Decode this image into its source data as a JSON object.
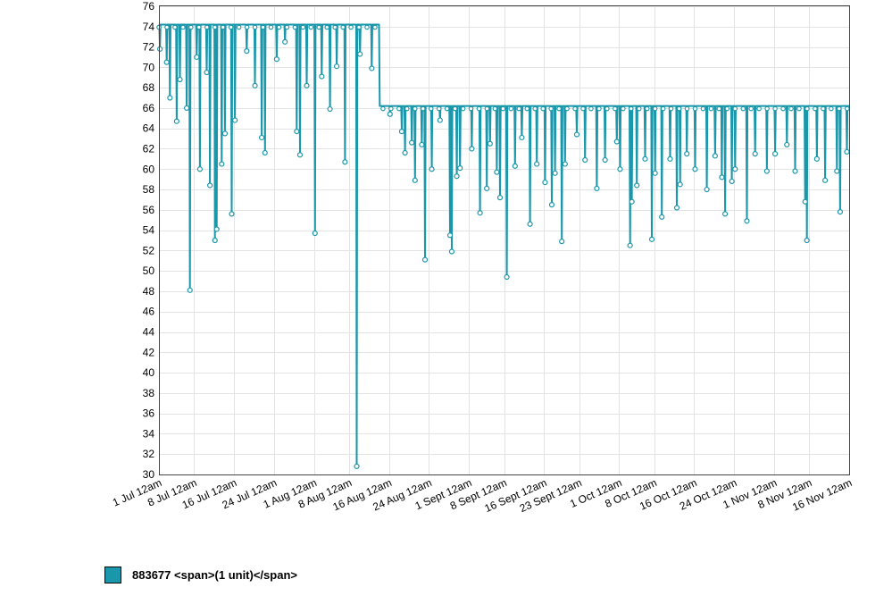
{
  "chart_data": {
    "type": "line",
    "title": "",
    "xlabel": "",
    "ylabel": "",
    "ylim": [
      30,
      76
    ],
    "xlim": [
      "2024-07-01",
      "2024-11-16"
    ],
    "yticks": [
      30,
      32,
      34,
      36,
      38,
      40,
      42,
      44,
      46,
      48,
      50,
      52,
      54,
      56,
      58,
      60,
      62,
      64,
      66,
      68,
      70,
      72,
      74,
      76
    ],
    "xticks": [
      {
        "date": "2024-07-01",
        "label": "1 Jul 12am"
      },
      {
        "date": "2024-07-08",
        "label": "8 Jul 12am"
      },
      {
        "date": "2024-07-16",
        "label": "16 Jul 12am"
      },
      {
        "date": "2024-07-24",
        "label": "24 Jul 12am"
      },
      {
        "date": "2024-08-01",
        "label": "1 Aug 12am"
      },
      {
        "date": "2024-08-08",
        "label": "8 Aug 12am"
      },
      {
        "date": "2024-08-16",
        "label": "16 Aug 12am"
      },
      {
        "date": "2024-08-24",
        "label": "24 Aug 12am"
      },
      {
        "date": "2024-09-01",
        "label": "1 Sept 12am"
      },
      {
        "date": "2024-09-08",
        "label": "8 Sept 12am"
      },
      {
        "date": "2024-09-16",
        "label": "16 Sept 12am"
      },
      {
        "date": "2024-09-23",
        "label": "23 Sept 12am"
      },
      {
        "date": "2024-10-01",
        "label": "1 Oct 12am"
      },
      {
        "date": "2024-10-08",
        "label": "8 Oct 12am"
      },
      {
        "date": "2024-10-16",
        "label": "16 Oct 12am"
      },
      {
        "date": "2024-10-24",
        "label": "24 Oct 12am"
      },
      {
        "date": "2024-11-01",
        "label": "1 Nov 12am"
      },
      {
        "date": "2024-11-08",
        "label": "8 Nov 12am"
      },
      {
        "date": "2024-11-16",
        "label": "16 Nov 12am"
      }
    ],
    "grid": true,
    "legend_position": "bottom-left",
    "series": [
      {
        "name": "883677 <span>(1 unit)</span>",
        "color": "#1a97ab",
        "phases": [
          {
            "from": "2024-07-01",
            "to": "2024-08-14",
            "baseline": 74.2
          },
          {
            "from": "2024-08-14",
            "to": "2024-11-16",
            "baseline": 66.2
          }
        ],
        "dips": [
          {
            "x": "2024-07-01",
            "y": 71.8
          },
          {
            "x": "2024-07-02",
            "y": 70.5
          },
          {
            "x": "2024-07-03",
            "y": 67.0
          },
          {
            "x": "2024-07-04",
            "y": 64.7
          },
          {
            "x": "2024-07-05",
            "y": 68.8
          },
          {
            "x": "2024-07-06",
            "y": 66.0
          },
          {
            "x": "2024-07-07",
            "y": 48.1
          },
          {
            "x": "2024-07-08",
            "y": 71.0
          },
          {
            "x": "2024-07-09",
            "y": 60.0
          },
          {
            "x": "2024-07-10",
            "y": 69.5
          },
          {
            "x": "2024-07-11",
            "y": 58.4
          },
          {
            "x": "2024-07-12",
            "y": 54.1
          },
          {
            "x": "2024-07-12",
            "y": 53.0
          },
          {
            "x": "2024-07-13",
            "y": 60.5
          },
          {
            "x": "2024-07-14",
            "y": 63.5
          },
          {
            "x": "2024-07-15",
            "y": 55.6
          },
          {
            "x": "2024-07-16",
            "y": 64.8
          },
          {
            "x": "2024-07-18",
            "y": 71.6
          },
          {
            "x": "2024-07-20",
            "y": 68.2
          },
          {
            "x": "2024-07-21",
            "y": 63.1
          },
          {
            "x": "2024-07-22",
            "y": 61.6
          },
          {
            "x": "2024-07-24",
            "y": 70.8
          },
          {
            "x": "2024-07-26",
            "y": 72.5
          },
          {
            "x": "2024-07-28",
            "y": 63.7
          },
          {
            "x": "2024-07-29",
            "y": 61.4
          },
          {
            "x": "2024-07-30",
            "y": 68.2
          },
          {
            "x": "2024-08-01",
            "y": 53.7
          },
          {
            "x": "2024-08-02",
            "y": 69.1
          },
          {
            "x": "2024-08-04",
            "y": 65.9
          },
          {
            "x": "2024-08-05",
            "y": 70.1
          },
          {
            "x": "2024-08-07",
            "y": 60.7
          },
          {
            "x": "2024-08-09",
            "y": 30.8
          },
          {
            "x": "2024-08-10",
            "y": 71.3
          },
          {
            "x": "2024-08-12",
            "y": 69.9
          },
          {
            "x": "2024-08-16",
            "y": 65.4
          },
          {
            "x": "2024-08-18",
            "y": 63.7
          },
          {
            "x": "2024-08-19",
            "y": 61.6
          },
          {
            "x": "2024-08-20",
            "y": 62.6
          },
          {
            "x": "2024-08-21",
            "y": 58.9
          },
          {
            "x": "2024-08-22",
            "y": 62.4
          },
          {
            "x": "2024-08-23",
            "y": 51.1
          },
          {
            "x": "2024-08-24",
            "y": 60.0
          },
          {
            "x": "2024-08-26",
            "y": 64.8
          },
          {
            "x": "2024-08-28",
            "y": 51.9
          },
          {
            "x": "2024-08-28",
            "y": 53.5
          },
          {
            "x": "2024-08-29",
            "y": 59.3
          },
          {
            "x": "2024-08-30",
            "y": 60.1
          },
          {
            "x": "2024-09-01",
            "y": 62.0
          },
          {
            "x": "2024-09-03",
            "y": 55.7
          },
          {
            "x": "2024-09-04",
            "y": 58.1
          },
          {
            "x": "2024-09-05",
            "y": 62.5
          },
          {
            "x": "2024-09-06",
            "y": 59.7
          },
          {
            "x": "2024-09-07",
            "y": 57.2
          },
          {
            "x": "2024-09-08",
            "y": 49.4
          },
          {
            "x": "2024-09-10",
            "y": 60.3
          },
          {
            "x": "2024-09-11",
            "y": 63.1
          },
          {
            "x": "2024-09-13",
            "y": 54.6
          },
          {
            "x": "2024-09-14",
            "y": 60.5
          },
          {
            "x": "2024-09-16",
            "y": 58.7
          },
          {
            "x": "2024-09-17",
            "y": 56.5
          },
          {
            "x": "2024-09-18",
            "y": 59.6
          },
          {
            "x": "2024-09-19",
            "y": 52.9
          },
          {
            "x": "2024-09-20",
            "y": 60.5
          },
          {
            "x": "2024-09-22",
            "y": 63.4
          },
          {
            "x": "2024-09-24",
            "y": 60.9
          },
          {
            "x": "2024-09-26",
            "y": 58.1
          },
          {
            "x": "2024-09-28",
            "y": 60.9
          },
          {
            "x": "2024-09-30",
            "y": 62.7
          },
          {
            "x": "2024-10-01",
            "y": 60.0
          },
          {
            "x": "2024-10-03",
            "y": 56.8
          },
          {
            "x": "2024-10-03",
            "y": 52.5
          },
          {
            "x": "2024-10-04",
            "y": 58.4
          },
          {
            "x": "2024-10-06",
            "y": 61.0
          },
          {
            "x": "2024-10-07",
            "y": 53.1
          },
          {
            "x": "2024-10-08",
            "y": 59.6
          },
          {
            "x": "2024-10-09",
            "y": 55.3
          },
          {
            "x": "2024-10-11",
            "y": 61.0
          },
          {
            "x": "2024-10-12",
            "y": 56.2
          },
          {
            "x": "2024-10-13",
            "y": 58.5
          },
          {
            "x": "2024-10-14",
            "y": 61.5
          },
          {
            "x": "2024-10-16",
            "y": 60.0
          },
          {
            "x": "2024-10-18",
            "y": 58.0
          },
          {
            "x": "2024-10-20",
            "y": 61.3
          },
          {
            "x": "2024-10-21",
            "y": 59.2
          },
          {
            "x": "2024-10-22",
            "y": 55.6
          },
          {
            "x": "2024-10-23",
            "y": 58.8
          },
          {
            "x": "2024-10-24",
            "y": 60.0
          },
          {
            "x": "2024-10-26",
            "y": 54.9
          },
          {
            "x": "2024-10-28",
            "y": 61.5
          },
          {
            "x": "2024-10-30",
            "y": 59.8
          },
          {
            "x": "2024-11-01",
            "y": 61.5
          },
          {
            "x": "2024-11-03",
            "y": 62.4
          },
          {
            "x": "2024-11-05",
            "y": 59.8
          },
          {
            "x": "2024-11-07",
            "y": 53.0
          },
          {
            "x": "2024-11-07",
            "y": 56.8
          },
          {
            "x": "2024-11-09",
            "y": 61.0
          },
          {
            "x": "2024-11-11",
            "y": 58.9
          },
          {
            "x": "2024-11-13",
            "y": 59.8
          },
          {
            "x": "2024-11-14",
            "y": 55.8
          },
          {
            "x": "2024-11-15",
            "y": 61.7
          }
        ]
      }
    ]
  },
  "legend": {
    "label": "883677 <span>(1 unit)</span>",
    "color": "#1a97ab"
  }
}
